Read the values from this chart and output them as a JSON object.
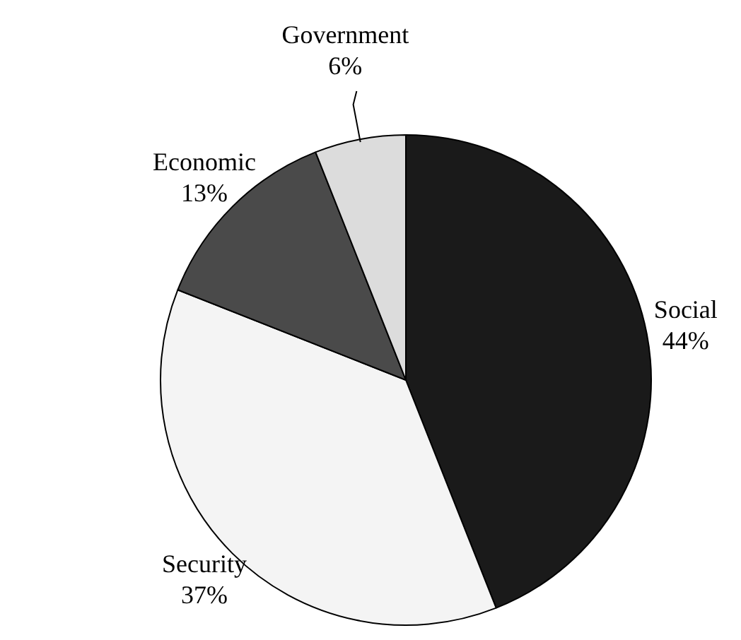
{
  "chart_data": {
    "type": "pie",
    "categories": [
      "Social",
      "Security",
      "Economic",
      "Government"
    ],
    "values": [
      44,
      37,
      13,
      6
    ],
    "colors": [
      "#1a1a1a",
      "#f4f4f4",
      "#4a4a4a",
      "#dcdcdc"
    ],
    "value_labels": [
      "44%",
      "37%",
      "13%",
      "6%"
    ],
    "legend": false
  }
}
